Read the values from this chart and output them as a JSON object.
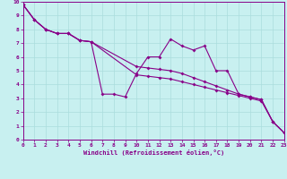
{
  "xlabel": "Windchill (Refroidissement éolien,°C)",
  "bg_color": "#c8f0f0",
  "line_color": "#880088",
  "grid_color": "#aadddd",
  "xlim": [
    0,
    23
  ],
  "ylim": [
    0,
    10
  ],
  "xticks": [
    0,
    1,
    2,
    3,
    4,
    5,
    6,
    7,
    8,
    9,
    10,
    11,
    12,
    13,
    14,
    15,
    16,
    17,
    18,
    19,
    20,
    21,
    22,
    23
  ],
  "yticks": [
    0,
    1,
    2,
    3,
    4,
    5,
    6,
    7,
    8,
    9,
    10
  ],
  "line1_x": [
    0,
    1,
    2,
    3,
    4,
    5,
    6,
    7,
    8,
    9,
    10,
    11,
    12,
    13,
    14,
    15,
    16,
    17,
    18,
    19,
    20,
    21,
    22,
    23
  ],
  "line1_y": [
    9.8,
    8.7,
    8.0,
    7.7,
    7.7,
    7.2,
    7.1,
    3.3,
    3.3,
    3.1,
    4.8,
    6.0,
    6.0,
    7.3,
    6.8,
    6.5,
    6.8,
    5.0,
    5.0,
    3.3,
    3.1,
    2.9,
    1.3,
    0.5
  ],
  "line2_x": [
    0,
    1,
    2,
    3,
    4,
    5,
    6,
    10,
    11,
    12,
    13,
    14,
    15,
    16,
    17,
    18,
    19,
    20,
    21,
    22,
    23
  ],
  "line2_y": [
    9.8,
    8.7,
    8.0,
    7.7,
    7.7,
    7.2,
    7.1,
    5.3,
    5.2,
    5.1,
    5.0,
    4.8,
    4.5,
    4.2,
    3.9,
    3.6,
    3.3,
    3.1,
    2.9,
    1.3,
    0.5
  ],
  "line3_x": [
    0,
    1,
    2,
    3,
    4,
    5,
    6,
    10,
    11,
    12,
    13,
    14,
    15,
    16,
    17,
    18,
    19,
    20,
    21,
    22,
    23
  ],
  "line3_y": [
    9.8,
    8.7,
    8.0,
    7.7,
    7.7,
    7.2,
    7.1,
    4.7,
    4.6,
    4.5,
    4.4,
    4.2,
    4.0,
    3.8,
    3.6,
    3.4,
    3.2,
    3.0,
    2.8,
    1.3,
    0.5
  ]
}
